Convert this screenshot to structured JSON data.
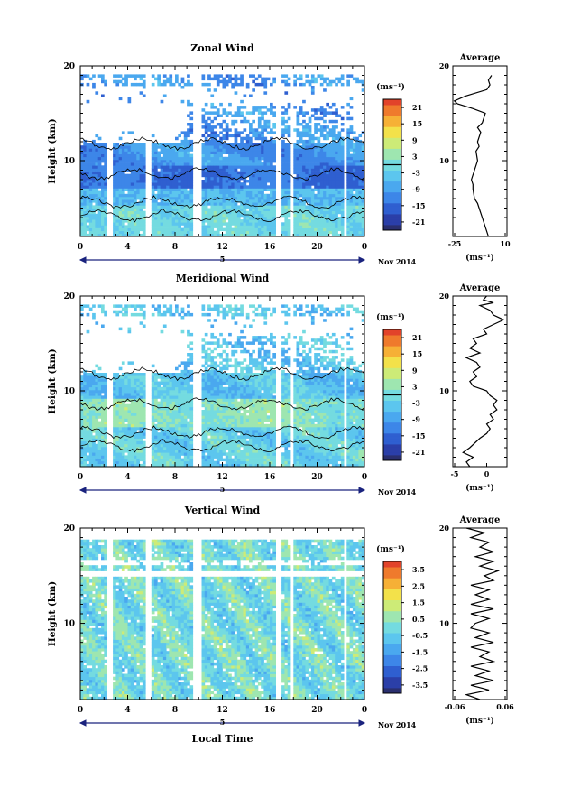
{
  "page": {
    "x_axis_title": "Local Time",
    "date_label": "Nov 2014"
  },
  "chart_data": [
    {
      "id": "zonal",
      "type": "heatmap",
      "title": "Zonal Wind",
      "ylabel": "Height (km)",
      "xlabel": "",
      "x_ticks": [
        "0",
        "4",
        "8",
        "12",
        "16",
        "20",
        "0"
      ],
      "y_ticks": [
        "20",
        "10"
      ],
      "ylim": [
        2,
        20
      ],
      "xlim_hours": [
        0,
        24
      ],
      "day_label": "5",
      "date_label": "Nov 2014",
      "colorbar": {
        "unit": "(ms⁻¹)",
        "ticks": [
          "21",
          "15",
          "9",
          "3",
          "-3",
          "-9",
          "-15",
          "-21"
        ],
        "range": [
          -24,
          24
        ],
        "zero_line": 0
      },
      "data_gaps_hours": [
        [
          2.3,
          2.7
        ],
        [
          5.5,
          6.0
        ],
        [
          9.6,
          10.2
        ],
        [
          16.6,
          17.0
        ],
        [
          17.7,
          18.0
        ],
        [
          22.3,
          22.6
        ]
      ],
      "contour_level": 0,
      "average_panel": {
        "title": "Average",
        "xlim": [
          -25,
          10
        ],
        "x_ticks": [
          "-25",
          "10"
        ],
        "y_ticks": [
          "20",
          "10"
        ],
        "unit": "(ms⁻¹)",
        "profile": [
          [
            2.0,
            -2
          ],
          [
            3.0,
            -4
          ],
          [
            4.0,
            -6
          ],
          [
            5.0,
            -8
          ],
          [
            5.5,
            -9
          ],
          [
            6.0,
            -11
          ],
          [
            7.0,
            -12
          ],
          [
            7.5,
            -12
          ],
          [
            8.0,
            -13
          ],
          [
            9.0,
            -11
          ],
          [
            9.5,
            -10
          ],
          [
            10.0,
            -9
          ],
          [
            11.0,
            -10
          ],
          [
            11.5,
            -8
          ],
          [
            12.0,
            -9
          ],
          [
            13.0,
            -7
          ],
          [
            13.5,
            -9
          ],
          [
            14.0,
            -6
          ],
          [
            15.0,
            -4
          ],
          [
            15.5,
            -12
          ],
          [
            16.0,
            -22
          ],
          [
            16.3,
            -24
          ],
          [
            16.8,
            -17
          ],
          [
            17.5,
            -3
          ],
          [
            18.0,
            -1
          ],
          [
            18.5,
            -2
          ],
          [
            19.0,
            0
          ]
        ]
      }
    },
    {
      "id": "meridional",
      "type": "heatmap",
      "title": "Meridional Wind",
      "ylabel": "Height (km)",
      "xlabel": "",
      "x_ticks": [
        "0",
        "4",
        "8",
        "12",
        "16",
        "20",
        "0"
      ],
      "y_ticks": [
        "20",
        "10"
      ],
      "ylim": [
        2,
        20
      ],
      "xlim_hours": [
        0,
        24
      ],
      "day_label": "5",
      "date_label": "Nov 2014",
      "colorbar": {
        "unit": "(ms⁻¹)",
        "ticks": [
          "21",
          "15",
          "9",
          "3",
          "-3",
          "-9",
          "-15",
          "-21"
        ],
        "range": [
          -24,
          24
        ],
        "zero_line": 0
      },
      "data_gaps_hours": [
        [
          2.3,
          2.7
        ],
        [
          5.5,
          6.0
        ],
        [
          9.6,
          10.2
        ],
        [
          16.6,
          17.0
        ],
        [
          17.7,
          18.0
        ],
        [
          22.3,
          22.6
        ]
      ],
      "contour_level": 0,
      "average_panel": {
        "title": "Average",
        "xlim": [
          -5,
          3
        ],
        "x_ticks": [
          "-5",
          "0"
        ],
        "y_ticks": [
          "20",
          "10"
        ],
        "unit": "(ms⁻¹)",
        "profile": [
          [
            2.0,
            -2.5
          ],
          [
            2.5,
            -3
          ],
          [
            3.0,
            -2
          ],
          [
            3.5,
            -3.5
          ],
          [
            4.0,
            -2.5
          ],
          [
            5.0,
            -1
          ],
          [
            5.5,
            0
          ],
          [
            6.0,
            0.5
          ],
          [
            6.5,
            0
          ],
          [
            7.0,
            1
          ],
          [
            7.5,
            0.5
          ],
          [
            8.0,
            1.5
          ],
          [
            8.5,
            1
          ],
          [
            9.0,
            1.5
          ],
          [
            9.5,
            0.5
          ],
          [
            10.0,
            0
          ],
          [
            10.5,
            -2
          ],
          [
            11.0,
            -2.5
          ],
          [
            11.5,
            -1.5
          ],
          [
            12.0,
            -2
          ],
          [
            12.5,
            -1
          ],
          [
            13.0,
            -1.5
          ],
          [
            13.5,
            -3
          ],
          [
            14.0,
            -1
          ],
          [
            14.5,
            -2.5
          ],
          [
            15.0,
            -1.5
          ],
          [
            15.5,
            -2
          ],
          [
            16.0,
            0
          ],
          [
            16.5,
            -0.5
          ],
          [
            17.0,
            1
          ],
          [
            17.5,
            2.5
          ],
          [
            18.0,
            1
          ],
          [
            18.5,
            0.5
          ],
          [
            19.0,
            -1
          ],
          [
            19.3,
            1
          ],
          [
            19.6,
            -0.5
          ],
          [
            20.0,
            0
          ]
        ]
      }
    },
    {
      "id": "vertical",
      "type": "heatmap",
      "title": "Vertical Wind",
      "ylabel": "Height (km)",
      "xlabel": "Local Time",
      "x_ticks": [
        "0",
        "4",
        "8",
        "12",
        "16",
        "20",
        "0"
      ],
      "y_ticks": [
        "20",
        "10"
      ],
      "ylim": [
        2,
        20
      ],
      "xlim_hours": [
        0,
        24
      ],
      "day_label": "5",
      "date_label": "Nov 2014",
      "colorbar": {
        "unit": "(ms⁻¹)",
        "ticks": [
          "3.5",
          "2.5",
          "1.5",
          "0.5",
          "-0.5",
          "-1.5",
          "-2.5",
          "-3.5"
        ],
        "range": [
          -4,
          4
        ],
        "zero_line": null
      },
      "data_gaps_hours": [
        [
          2.3,
          2.7
        ],
        [
          5.5,
          6.0
        ],
        [
          9.6,
          10.2
        ],
        [
          16.6,
          17.0
        ],
        [
          17.7,
          18.0
        ],
        [
          22.3,
          22.6
        ]
      ],
      "contour_level": null,
      "average_panel": {
        "title": "Average",
        "xlim": [
          -0.06,
          0.06
        ],
        "x_ticks": [
          "-0.06",
          "0.06"
        ],
        "y_ticks": [
          "20",
          "10"
        ],
        "unit": "(ms⁻¹)",
        "profile": [
          [
            2.0,
            0.0
          ],
          [
            2.5,
            -0.03
          ],
          [
            3.0,
            0.02
          ],
          [
            3.5,
            -0.02
          ],
          [
            4.0,
            0.03
          ],
          [
            4.5,
            -0.01
          ],
          [
            5.0,
            0.02
          ],
          [
            5.5,
            -0.02
          ],
          [
            6.0,
            0.03
          ],
          [
            6.5,
            0.0
          ],
          [
            7.0,
            0.02
          ],
          [
            7.5,
            -0.02
          ],
          [
            8.0,
            0.03
          ],
          [
            8.5,
            -0.01
          ],
          [
            9.0,
            0.02
          ],
          [
            9.5,
            -0.02
          ],
          [
            10.0,
            -0.01
          ],
          [
            10.5,
            0.02
          ],
          [
            11.0,
            -0.02
          ],
          [
            11.5,
            0.03
          ],
          [
            12.0,
            -0.02
          ],
          [
            12.5,
            0.02
          ],
          [
            13.0,
            -0.01
          ],
          [
            13.5,
            0.02
          ],
          [
            14.0,
            -0.02
          ],
          [
            14.5,
            0.03
          ],
          [
            15.0,
            0.01
          ],
          [
            15.5,
            0.04
          ],
          [
            16.0,
            0.0
          ],
          [
            16.5,
            0.03
          ],
          [
            17.0,
            -0.01
          ],
          [
            17.5,
            0.03
          ],
          [
            18.0,
            0.0
          ],
          [
            18.5,
            0.02
          ],
          [
            19.0,
            -0.02
          ],
          [
            19.5,
            0.01
          ],
          [
            20.0,
            -0.03
          ]
        ]
      }
    }
  ]
}
